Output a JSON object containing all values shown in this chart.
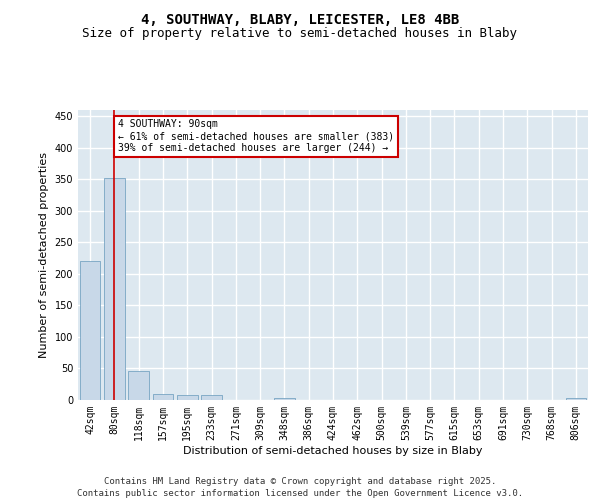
{
  "title_line1": "4, SOUTHWAY, BLABY, LEICESTER, LE8 4BB",
  "title_line2": "Size of property relative to semi-detached houses in Blaby",
  "xlabel": "Distribution of semi-detached houses by size in Blaby",
  "ylabel": "Number of semi-detached properties",
  "categories": [
    "42sqm",
    "80sqm",
    "118sqm",
    "157sqm",
    "195sqm",
    "233sqm",
    "271sqm",
    "309sqm",
    "348sqm",
    "386sqm",
    "424sqm",
    "462sqm",
    "500sqm",
    "539sqm",
    "577sqm",
    "615sqm",
    "653sqm",
    "691sqm",
    "730sqm",
    "768sqm",
    "806sqm"
  ],
  "values": [
    220,
    352,
    46,
    10,
    8,
    8,
    0,
    0,
    3,
    0,
    0,
    0,
    0,
    0,
    0,
    0,
    0,
    0,
    0,
    0,
    3
  ],
  "bar_color": "#c8d8e8",
  "bar_edge_color": "#6699bb",
  "vline_x": 1,
  "vline_color": "#cc0000",
  "annotation_title": "4 SOUTHWAY: 90sqm",
  "annotation_line2": "← 61% of semi-detached houses are smaller (383)",
  "annotation_line3": "39% of semi-detached houses are larger (244) →",
  "annotation_box_color": "#cc0000",
  "ylim": [
    0,
    460
  ],
  "yticks": [
    0,
    50,
    100,
    150,
    200,
    250,
    300,
    350,
    400,
    450
  ],
  "background_color": "#dde8f0",
  "grid_color": "#ffffff",
  "footer_line1": "Contains HM Land Registry data © Crown copyright and database right 2025.",
  "footer_line2": "Contains public sector information licensed under the Open Government Licence v3.0.",
  "title_fontsize": 10,
  "subtitle_fontsize": 9,
  "axis_label_fontsize": 8,
  "tick_fontsize": 7,
  "footer_fontsize": 6.5
}
